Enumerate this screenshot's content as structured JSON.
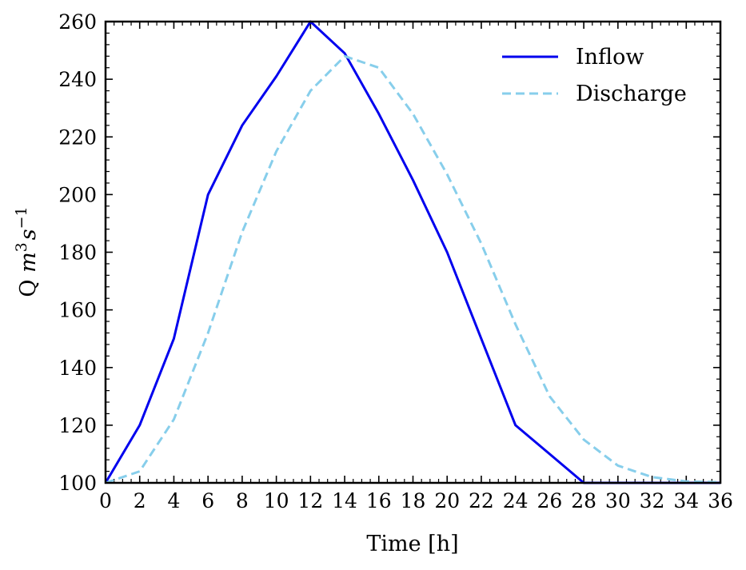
{
  "chart_data": {
    "type": "line",
    "xlabel": "Time [h]",
    "ylabel": {
      "prefix": "Q ",
      "m": "m",
      "m_exp": "3",
      "s": "s",
      "s_exp": "−1"
    },
    "xlim": [
      0,
      36
    ],
    "ylim": [
      100,
      260
    ],
    "xticks": [
      0,
      2,
      4,
      6,
      8,
      10,
      12,
      14,
      16,
      18,
      20,
      22,
      24,
      26,
      28,
      30,
      32,
      34,
      36
    ],
    "yticks": [
      100,
      120,
      140,
      160,
      180,
      200,
      220,
      240,
      260
    ],
    "grid": false,
    "legend_position": "top-right",
    "series": [
      {
        "name": "Inflow",
        "color": "#0000ee",
        "style": "solid",
        "x": [
          0,
          2,
          4,
          6,
          8,
          10,
          12,
          14,
          16,
          18,
          20,
          22,
          24,
          26,
          28,
          30,
          32,
          34,
          36
        ],
        "y": [
          100,
          120,
          150,
          200,
          224,
          241,
          260,
          249,
          228,
          205,
          180,
          150,
          120,
          110,
          100,
          100,
          100,
          100,
          100
        ]
      },
      {
        "name": "Discharge",
        "color": "#87ceeb",
        "style": "dashed",
        "x": [
          0,
          2,
          4,
          6,
          8,
          10,
          12,
          14,
          16,
          18,
          20,
          22,
          24,
          26,
          28,
          30,
          32,
          34,
          36
        ],
        "y": [
          100,
          104,
          122,
          152,
          187,
          215,
          236,
          248,
          244,
          228,
          207,
          183,
          155,
          130,
          115,
          106,
          102,
          100.5,
          100.2
        ]
      }
    ]
  }
}
